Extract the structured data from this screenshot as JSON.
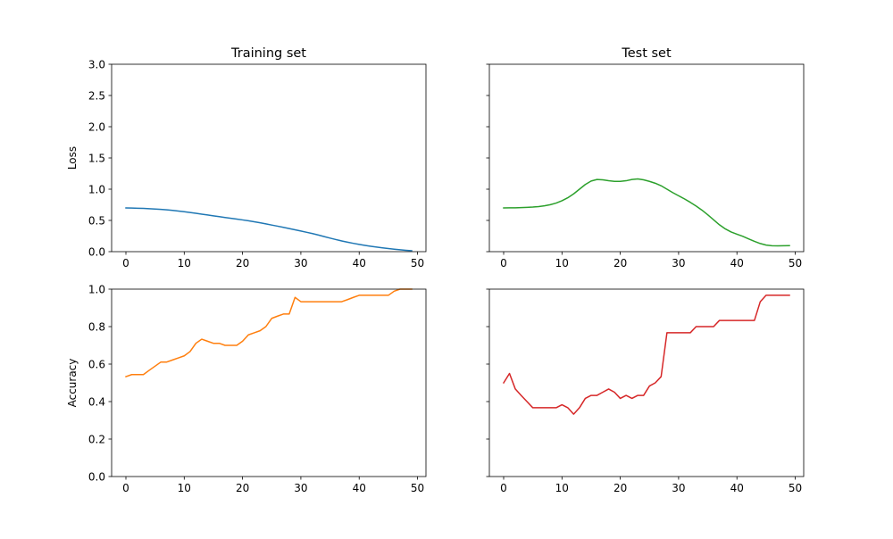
{
  "colors": {
    "loss_train": "#1f77b4",
    "acc_train": "#ff7f0e",
    "loss_test": "#2ca02c",
    "acc_test": "#d62728"
  },
  "chart_data": [
    {
      "type": "line",
      "title": "Training set",
      "xlabel": "",
      "ylabel": "Loss",
      "xlim": [
        -2.45,
        51.45
      ],
      "ylim": [
        0,
        3
      ],
      "xticks": [
        0,
        10,
        20,
        30,
        40,
        50
      ],
      "yticks": [
        0.0,
        0.5,
        1.0,
        1.5,
        2.0,
        2.5,
        3.0
      ],
      "ytick_labels": [
        "0.0",
        "0.5",
        "1.0",
        "1.5",
        "2.0",
        "2.5",
        "3.0"
      ],
      "show_ytick_labels": true,
      "grid": false,
      "color_key": "loss_train",
      "x": [
        0,
        1,
        2,
        3,
        4,
        5,
        6,
        7,
        8,
        9,
        10,
        11,
        12,
        13,
        14,
        15,
        16,
        17,
        18,
        19,
        20,
        21,
        22,
        23,
        24,
        25,
        26,
        27,
        28,
        29,
        30,
        31,
        32,
        33,
        34,
        35,
        36,
        37,
        38,
        39,
        40,
        41,
        42,
        43,
        44,
        45,
        46,
        47,
        48,
        49
      ],
      "series": [
        {
          "values": [
            0.7,
            0.698,
            0.695,
            0.692,
            0.688,
            0.683,
            0.677,
            0.669,
            0.66,
            0.65,
            0.639,
            0.627,
            0.614,
            0.6,
            0.587,
            0.574,
            0.56,
            0.547,
            0.534,
            0.521,
            0.508,
            0.494,
            0.478,
            0.462,
            0.444,
            0.426,
            0.408,
            0.389,
            0.369,
            0.35,
            0.33,
            0.31,
            0.289,
            0.266,
            0.241,
            0.217,
            0.194,
            0.172,
            0.152,
            0.133,
            0.116,
            0.1,
            0.086,
            0.073,
            0.061,
            0.05,
            0.04,
            0.03,
            0.022,
            0.015
          ]
        }
      ]
    },
    {
      "type": "line",
      "title": "Test set",
      "xlabel": "",
      "ylabel": "",
      "xlim": [
        -2.45,
        51.45
      ],
      "ylim": [
        0,
        3
      ],
      "xticks": [
        0,
        10,
        20,
        30,
        40,
        50
      ],
      "yticks": [
        0.0,
        0.5,
        1.0,
        1.5,
        2.0,
        2.5,
        3.0
      ],
      "ytick_labels": [],
      "show_ytick_labels": false,
      "grid": false,
      "color_key": "loss_test",
      "x": [
        0,
        1,
        2,
        3,
        4,
        5,
        6,
        7,
        8,
        9,
        10,
        11,
        12,
        13,
        14,
        15,
        16,
        17,
        18,
        19,
        20,
        21,
        22,
        23,
        24,
        25,
        26,
        27,
        28,
        29,
        30,
        31,
        32,
        33,
        34,
        35,
        36,
        37,
        38,
        39,
        40,
        41,
        42,
        43,
        44,
        45,
        46,
        47,
        48,
        49
      ],
      "series": [
        {
          "values": [
            0.7,
            0.701,
            0.702,
            0.705,
            0.709,
            0.714,
            0.722,
            0.734,
            0.752,
            0.778,
            0.815,
            0.863,
            0.925,
            1.0,
            1.075,
            1.13,
            1.155,
            1.15,
            1.135,
            1.125,
            1.125,
            1.135,
            1.155,
            1.165,
            1.15,
            1.125,
            1.095,
            1.055,
            1.0,
            0.945,
            0.895,
            0.845,
            0.79,
            0.73,
            0.665,
            0.59,
            0.51,
            0.43,
            0.365,
            0.315,
            0.28,
            0.245,
            0.205,
            0.165,
            0.13,
            0.105,
            0.095,
            0.093,
            0.094,
            0.096
          ]
        }
      ]
    },
    {
      "type": "line",
      "title": "",
      "xlabel": "",
      "ylabel": "Accuracy",
      "xlim": [
        -2.45,
        51.45
      ],
      "ylim": [
        0,
        1
      ],
      "xticks": [
        0,
        10,
        20,
        30,
        40,
        50
      ],
      "yticks": [
        0.0,
        0.2,
        0.4,
        0.6,
        0.8,
        1.0
      ],
      "ytick_labels": [
        "0.0",
        "0.2",
        "0.4",
        "0.6",
        "0.8",
        "1.0"
      ],
      "show_ytick_labels": true,
      "grid": false,
      "color_key": "acc_train",
      "x": [
        0,
        1,
        2,
        3,
        4,
        5,
        6,
        7,
        8,
        9,
        10,
        11,
        12,
        13,
        14,
        15,
        16,
        17,
        18,
        19,
        20,
        21,
        22,
        23,
        24,
        25,
        26,
        27,
        28,
        29,
        30,
        31,
        32,
        33,
        34,
        35,
        36,
        37,
        38,
        39,
        40,
        41,
        42,
        43,
        44,
        45,
        46,
        47,
        48,
        49
      ],
      "series": [
        {
          "values": [
            0.533,
            0.544,
            0.544,
            0.544,
            0.567,
            0.589,
            0.611,
            0.611,
            0.622,
            0.633,
            0.644,
            0.667,
            0.711,
            0.733,
            0.722,
            0.711,
            0.711,
            0.7,
            0.7,
            0.7,
            0.722,
            0.756,
            0.767,
            0.778,
            0.8,
            0.844,
            0.856,
            0.867,
            0.867,
            0.956,
            0.933,
            0.933,
            0.933,
            0.933,
            0.933,
            0.933,
            0.933,
            0.933,
            0.944,
            0.956,
            0.967,
            0.967,
            0.967,
            0.967,
            0.967,
            0.967,
            0.989,
            1.0,
            1.0,
            1.0
          ]
        }
      ]
    },
    {
      "type": "line",
      "title": "",
      "xlabel": "",
      "ylabel": "",
      "xlim": [
        -2.45,
        51.45
      ],
      "ylim": [
        0,
        1
      ],
      "xticks": [
        0,
        10,
        20,
        30,
        40,
        50
      ],
      "yticks": [
        0.0,
        0.2,
        0.4,
        0.6,
        0.8,
        1.0
      ],
      "ytick_labels": [],
      "show_ytick_labels": false,
      "grid": false,
      "color_key": "acc_test",
      "x": [
        0,
        1,
        2,
        3,
        4,
        5,
        6,
        7,
        8,
        9,
        10,
        11,
        12,
        13,
        14,
        15,
        16,
        17,
        18,
        19,
        20,
        21,
        22,
        23,
        24,
        25,
        26,
        27,
        28,
        29,
        30,
        31,
        32,
        33,
        34,
        35,
        36,
        37,
        38,
        39,
        40,
        41,
        42,
        43,
        44,
        45,
        46,
        47,
        48,
        49
      ],
      "series": [
        {
          "values": [
            0.5,
            0.55,
            0.467,
            0.433,
            0.4,
            0.367,
            0.367,
            0.367,
            0.367,
            0.367,
            0.383,
            0.367,
            0.333,
            0.367,
            0.417,
            0.433,
            0.433,
            0.45,
            0.467,
            0.45,
            0.417,
            0.433,
            0.417,
            0.433,
            0.433,
            0.483,
            0.5,
            0.533,
            0.767,
            0.767,
            0.767,
            0.767,
            0.767,
            0.8,
            0.8,
            0.8,
            0.8,
            0.833,
            0.833,
            0.833,
            0.833,
            0.833,
            0.833,
            0.833,
            0.933,
            0.967,
            0.967,
            0.967,
            0.967,
            0.967
          ]
        }
      ]
    }
  ]
}
